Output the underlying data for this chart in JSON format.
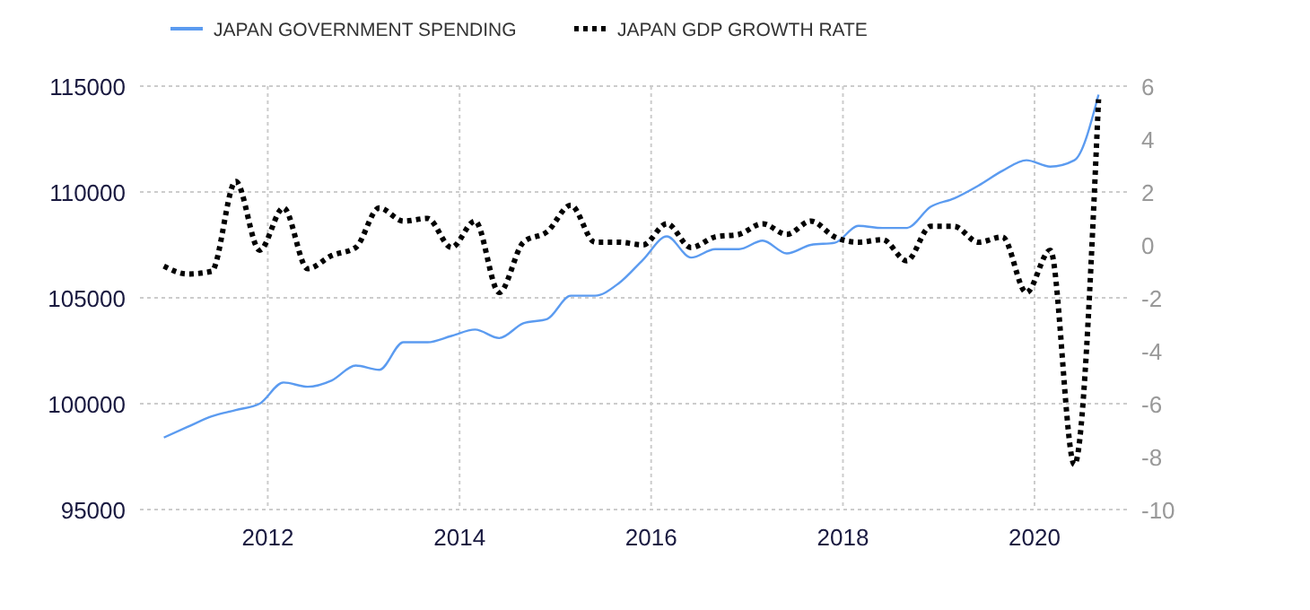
{
  "chart_data": {
    "type": "line",
    "x": [
      "2010-12",
      "2011-03",
      "2011-06",
      "2011-09",
      "2011-12",
      "2012-03",
      "2012-06",
      "2012-09",
      "2012-12",
      "2013-03",
      "2013-06",
      "2013-09",
      "2013-12",
      "2014-03",
      "2014-06",
      "2014-09",
      "2014-12",
      "2015-03",
      "2015-06",
      "2015-09",
      "2015-12",
      "2016-03",
      "2016-06",
      "2016-09",
      "2016-12",
      "2017-03",
      "2017-06",
      "2017-09",
      "2017-12",
      "2018-03",
      "2018-06",
      "2018-09",
      "2018-12",
      "2019-03",
      "2019-06",
      "2019-09",
      "2019-12",
      "2020-03",
      "2020-06",
      "2020-09"
    ],
    "series": [
      {
        "name": "JAPAN GOVERNMENT SPENDING",
        "color": "#5b9bf0",
        "line_style": "solid",
        "values": [
          98400,
          98900,
          99400,
          99700,
          100000,
          101000,
          100800,
          101100,
          101800,
          101600,
          102900,
          102900,
          103200,
          103500,
          103100,
          103800,
          104000,
          105100,
          105100,
          105700,
          106800,
          107900,
          106900,
          107300,
          107300,
          107700,
          107100,
          107500,
          107600,
          108400,
          108300,
          108300,
          109300,
          109700,
          110300,
          111000,
          111500,
          111200,
          111500,
          114600
        ]
      },
      {
        "name": "JAPAN GDP GROWTH RATE",
        "color": "#000000",
        "line_style": "dotted",
        "axis": "y2",
        "values": [
          -0.8,
          -1.1,
          -1.0,
          2.4,
          -0.2,
          1.4,
          -0.9,
          -0.4,
          -0.1,
          1.4,
          0.9,
          1.0,
          -0.1,
          0.9,
          -1.8,
          0.1,
          0.5,
          1.5,
          0.1,
          0.1,
          0.0,
          0.8,
          -0.1,
          0.3,
          0.4,
          0.8,
          0.4,
          0.9,
          0.3,
          0.1,
          0.2,
          -0.6,
          0.7,
          0.7,
          0.1,
          0.3,
          -1.8,
          -0.2,
          -8.3,
          5.5
        ]
      }
    ],
    "xlim": [
      "2010-09",
      "2021-01"
    ],
    "xticks": [
      {
        "value": "2012",
        "label": "2012"
      },
      {
        "value": "2014",
        "label": "2014"
      },
      {
        "value": "2016",
        "label": "2016"
      },
      {
        "value": "2018",
        "label": "2018"
      },
      {
        "value": "2020",
        "label": "2020"
      }
    ],
    "ylim": [
      95000,
      115000
    ],
    "yticks": [
      95000,
      100000,
      105000,
      110000,
      115000
    ],
    "y2lim": [
      -10,
      6
    ],
    "y2ticks": [
      -10,
      -8,
      -6,
      -4,
      -2,
      0,
      2,
      4,
      6
    ],
    "grid": true,
    "legend": "top left"
  }
}
